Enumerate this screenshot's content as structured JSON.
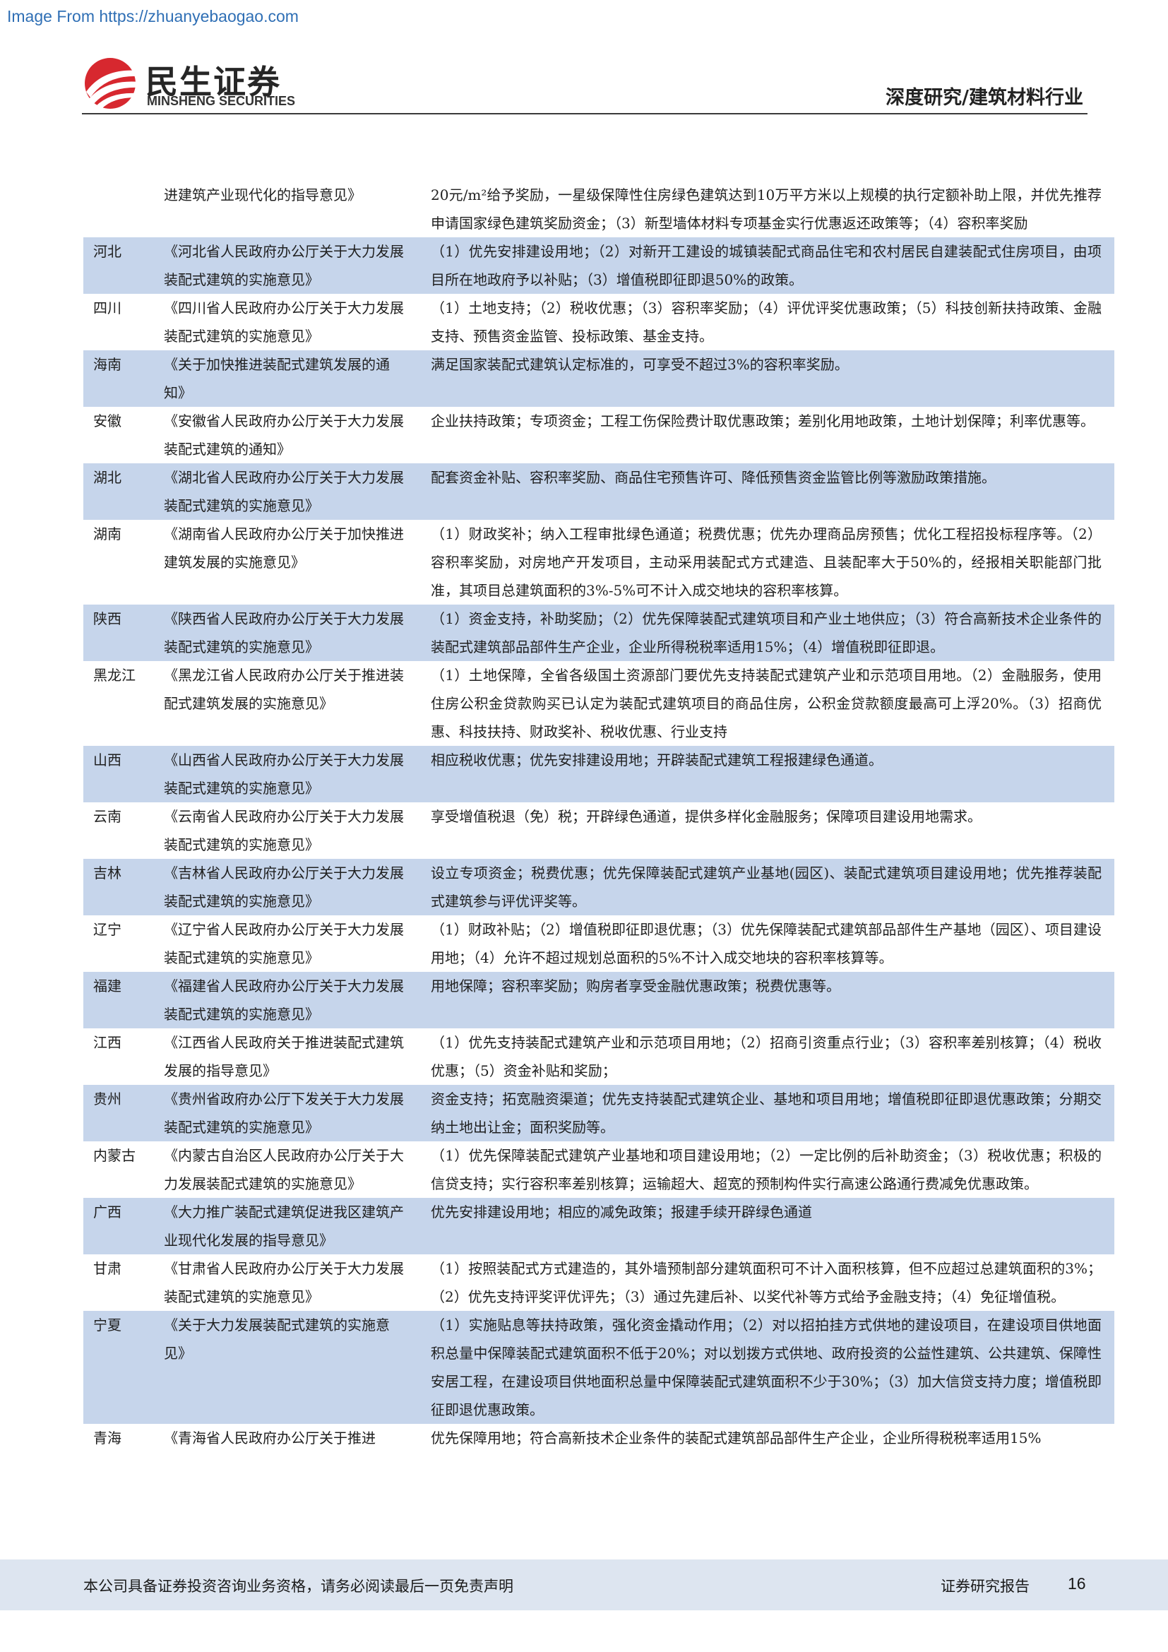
{
  "watermark": "Image From https://zhuanyebaogao.com",
  "header": {
    "logo_cn": "民生证券",
    "logo_en": "MINSHENG SECURITIES",
    "report_type": "深度研究/建筑材料行业",
    "logo_colors": {
      "red": "#d7282f",
      "dark": "#262626"
    }
  },
  "table_rows": [
    {
      "province": "",
      "document": "进建筑产业现代化的指导意见》",
      "measures": "20元/m²给予奖励，一星级保障性住房绿色建筑达到10万平方米以上规模的执行定额补助上限，并优先推荐申请国家绿色建筑奖励资金；（3）新型墙体材料专项基金实行优惠返还政策等；（4）容积率奖励",
      "shaded": false
    },
    {
      "province": "河北",
      "document": "《河北省人民政府办公厅关于大力发展装配式建筑的实施意见》",
      "measures": "（1）优先安排建设用地；（2）对新开工建设的城镇装配式商品住宅和农村居民自建装配式住房项目，由项目所在地政府予以补贴；（3）增值税即征即退50%的政策。",
      "shaded": true
    },
    {
      "province": "四川",
      "document": "《四川省人民政府办公厅关于大力发展装配式建筑的实施意见》",
      "measures": "（1）土地支持；（2）税收优惠；（3）容积率奖励；（4）评优评奖优惠政策；（5）科技创新扶持政策、金融支持、预售资金监管、投标政策、基金支持。",
      "shaded": false
    },
    {
      "province": "海南",
      "document": "《关于加快推进装配式建筑发展的通知》",
      "measures": "满足国家装配式建筑认定标准的，可享受不超过3%的容积率奖励。",
      "shaded": true
    },
    {
      "province": "安徽",
      "document": "《安徽省人民政府办公厅关于大力发展装配式建筑的通知》",
      "measures": "企业扶持政策；专项资金；工程工伤保险费计取优惠政策；差别化用地政策，土地计划保障；利率优惠等。",
      "shaded": false
    },
    {
      "province": "湖北",
      "document": "《湖北省人民政府办公厅关于大力发展装配式建筑的实施意见》",
      "measures": "配套资金补贴、容积率奖励、商品住宅预售许可、降低预售资金监管比例等激励政策措施。",
      "shaded": true
    },
    {
      "province": "湖南",
      "document": "《湖南省人民政府办公厅关于加快推进建筑发展的实施意见》",
      "measures": "（1）财政奖补；纳入工程审批绿色通道；税费优惠；优先办理商品房预售；优化工程招投标程序等。（2）容积率奖励，对房地产开发项目，主动采用装配式方式建造、且装配率大于50%的，经报相关职能部门批准，其项目总建筑面积的3%-5%可不计入成交地块的容积率核算。",
      "shaded": false
    },
    {
      "province": "陕西",
      "document": "《陕西省人民政府办公厅关于大力发展装配式建筑的实施意见》",
      "measures": "（1）资金支持，补助奖励；（2）优先保障装配式建筑项目和产业土地供应；（3）符合高新技术企业条件的装配式建筑部品部件生产企业，企业所得税税率适用15%；（4）增值税即征即退。",
      "shaded": true
    },
    {
      "province": "黑龙江",
      "document": "《黑龙江省人民政府办公厅关于推进装配式建筑发展的实施意见》",
      "measures": "（1）土地保障，全省各级国土资源部门要优先支持装配式建筑产业和示范项目用地。（2）金融服务，使用住房公积金贷款购买已认定为装配式建筑项目的商品住房，公积金贷款额度最高可上浮20%。（3）招商优惠、科技扶持、财政奖补、税收优惠、行业支持",
      "shaded": false
    },
    {
      "province": "山西",
      "document": "《山西省人民政府办公厅关于大力发展装配式建筑的实施意见》",
      "measures": "相应税收优惠；优先安排建设用地；开辟装配式建筑工程报建绿色通道。",
      "shaded": true
    },
    {
      "province": "云南",
      "document": "《云南省人民政府办公厅关于大力发展装配式建筑的实施意见》",
      "measures": "享受增值税退（免）税；开辟绿色通道，提供多样化金融服务；保障项目建设用地需求。",
      "shaded": false
    },
    {
      "province": "吉林",
      "document": "《吉林省人民政府办公厅关于大力发展装配式建筑的实施意见》",
      "measures": "设立专项资金；税费优惠；优先保障装配式建筑产业基地(园区)、装配式建筑项目建设用地；优先推荐装配式建筑参与评优评奖等。",
      "shaded": true
    },
    {
      "province": "辽宁",
      "document": "《辽宁省人民政府办公厅关于大力发展装配式建筑的实施意见》",
      "measures": "（1）财政补贴；（2）增值税即征即退优惠；（3）优先保障装配式建筑部品部件生产基地（园区）、项目建设用地；（4）允许不超过规划总面积的5%不计入成交地块的容积率核算等。",
      "shaded": false
    },
    {
      "province": "福建",
      "document": "《福建省人民政府办公厅关于大力发展装配式建筑的实施意见》",
      "measures": "用地保障；容积率奖励；购房者享受金融优惠政策；税费优惠等。",
      "shaded": true
    },
    {
      "province": "江西",
      "document": "《江西省人民政府关于推进装配式建筑发展的指导意见》",
      "measures": "（1）优先支持装配式建筑产业和示范项目用地；（2）招商引资重点行业；（3）容积率差别核算；（4）税收优惠；（5）资金补贴和奖励；",
      "shaded": false
    },
    {
      "province": "贵州",
      "document": "《贵州省政府办公厅下发关于大力发展装配式建筑的实施意见》",
      "measures": "资金支持；拓宽融资渠道；优先支持装配式建筑企业、基地和项目用地；增值税即征即退优惠政策；分期交纳土地出让金；面积奖励等。",
      "shaded": true
    },
    {
      "province": "内蒙古",
      "document": "《内蒙古自治区人民政府办公厅关于大力发展装配式建筑的实施意见》",
      "measures": "（1）优先保障装配式建筑产业基地和项目建设用地；（2）一定比例的后补助资金；（3）税收优惠；积极的信贷支持；实行容积率差别核算；运输超大、超宽的预制构件实行高速公路通行费减免优惠政策。",
      "shaded": false
    },
    {
      "province": "广西",
      "document": "《大力推广装配式建筑促进我区建筑产业现代化发展的指导意见》",
      "measures": "优先安排建设用地；相应的减免政策；报建手续开辟绿色通道",
      "shaded": true
    },
    {
      "province": "甘肃",
      "document": "《甘肃省人民政府办公厅关于大力发展装配式建筑的实施意见》",
      "measures": "（1）按照装配式方式建造的，其外墙预制部分建筑面积可不计入面积核算，但不应超过总建筑面积的3%；（2）优先支持评奖评优评先；（3）通过先建后补、以奖代补等方式给予金融支持；（4）免征增值税。",
      "shaded": false
    },
    {
      "province": "宁夏",
      "document": "《关于大力发展装配式建筑的实施意见》",
      "measures": "（1）实施贴息等扶持政策，强化资金撬动作用；（2）对以招拍挂方式供地的建设项目，在建设项目供地面积总量中保障装配式建筑面积不低于20%；对以划拨方式供地、政府投资的公益性建筑、公共建筑、保障性安居工程，在建设项目供地面积总量中保障装配式建筑面积不少于30%；（3）加大信贷支持力度；增值税即征即退优惠政策。",
      "shaded": true
    },
    {
      "province": "青海",
      "document": "《青海省人民政府办公厅关于推进",
      "measures": "优先保障用地；符合高新技术企业条件的装配式建筑部品部件生产企业，企业所得税税率适用15%",
      "shaded": false
    }
  ],
  "footer": {
    "disclaimer": "本公司具备证券投资咨询业务资格，请务必阅读最后一页免责声明",
    "report_label": "证券研究报告",
    "page_number": "16",
    "band_color": "#dde5f0"
  }
}
